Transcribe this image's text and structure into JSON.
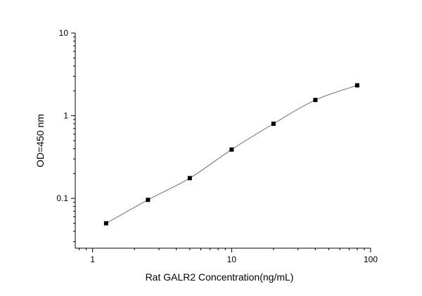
{
  "chart_data": {
    "type": "scatter",
    "title": "",
    "xlabel": "Rat GALR2 Concentration(ng/mL)",
    "ylabel": "OD=450 nm",
    "xscale": "log",
    "yscale": "log",
    "xlim": [
      0.75,
      100
    ],
    "ylim": [
      0.025,
      10
    ],
    "x_ticks": [
      {
        "value": 1,
        "label": "1"
      },
      {
        "value": 10,
        "label": "10"
      },
      {
        "value": 100,
        "label": "100"
      }
    ],
    "y_ticks": [
      {
        "value": 0.1,
        "label": "0.1"
      },
      {
        "value": 1,
        "label": "1"
      },
      {
        "value": 10,
        "label": "10"
      }
    ],
    "grid": false,
    "legend": "none",
    "series": [
      {
        "x": [
          1.25,
          2.5,
          5,
          10,
          20,
          40,
          80
        ],
        "y": [
          0.05,
          0.096,
          0.176,
          0.39,
          0.8,
          1.55,
          2.33
        ],
        "marker": "square",
        "line": "smooth"
      }
    ],
    "colors": {
      "marker": "#000000",
      "line": "#6e6e6e",
      "axis": "#000000"
    }
  }
}
